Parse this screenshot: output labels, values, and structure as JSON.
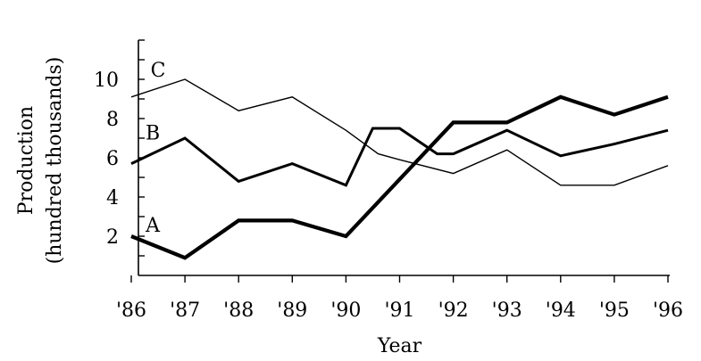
{
  "chart_data": {
    "type": "line",
    "categories": [
      "'86",
      "'87",
      "'88",
      "'89",
      "'90",
      "'91",
      "'92",
      "'93",
      "'94",
      "'95",
      "'96"
    ],
    "x": [
      1986,
      1987,
      1988,
      1989,
      1990,
      1991,
      1992,
      1993,
      1994,
      1995,
      1996
    ],
    "xlabel": "Year",
    "ylabel_lines": [
      "Production",
      "(hundred thousands)"
    ],
    "ylim": [
      0,
      12
    ],
    "yticks": [
      2,
      4,
      6,
      8,
      10
    ],
    "ytick_labels": [
      "2",
      "4",
      "6",
      "8",
      "10"
    ],
    "grid": false,
    "series": [
      {
        "name": "A",
        "stroke_width": 4.2,
        "points": [
          [
            1986,
            2.0
          ],
          [
            1987,
            0.9
          ],
          [
            1988,
            2.8
          ],
          [
            1989,
            2.8
          ],
          [
            1990,
            2.0
          ],
          [
            1992,
            7.8
          ],
          [
            1993,
            7.8
          ],
          [
            1994,
            9.1
          ],
          [
            1995,
            8.2
          ],
          [
            1996,
            9.1
          ]
        ],
        "label_at": [
          1986.4,
          2.6
        ]
      },
      {
        "name": "B",
        "stroke_width": 3.0,
        "points": [
          [
            1986,
            5.7
          ],
          [
            1987,
            7.0
          ],
          [
            1988,
            4.8
          ],
          [
            1989,
            5.7
          ],
          [
            1990,
            4.6
          ],
          [
            1990.5,
            7.5
          ],
          [
            1991,
            7.5
          ],
          [
            1991.7,
            6.2
          ],
          [
            1992,
            6.2
          ],
          [
            1993,
            7.4
          ],
          [
            1994,
            6.1
          ],
          [
            1995,
            6.7
          ],
          [
            1996,
            7.4
          ]
        ],
        "label_at": [
          1986.4,
          7.3
        ]
      },
      {
        "name": "C",
        "stroke_width": 1.4,
        "points": [
          [
            1986,
            9.1
          ],
          [
            1987,
            10.0
          ],
          [
            1988,
            8.4
          ],
          [
            1989,
            9.1
          ],
          [
            1990,
            7.4
          ],
          [
            1990.6,
            6.2
          ],
          [
            1991,
            5.9
          ],
          [
            1992,
            5.2
          ],
          [
            1993,
            6.4
          ],
          [
            1994,
            4.6
          ],
          [
            1995,
            4.6
          ],
          [
            1996,
            5.6
          ]
        ],
        "label_at": [
          1986.5,
          10.5
        ]
      }
    ]
  }
}
